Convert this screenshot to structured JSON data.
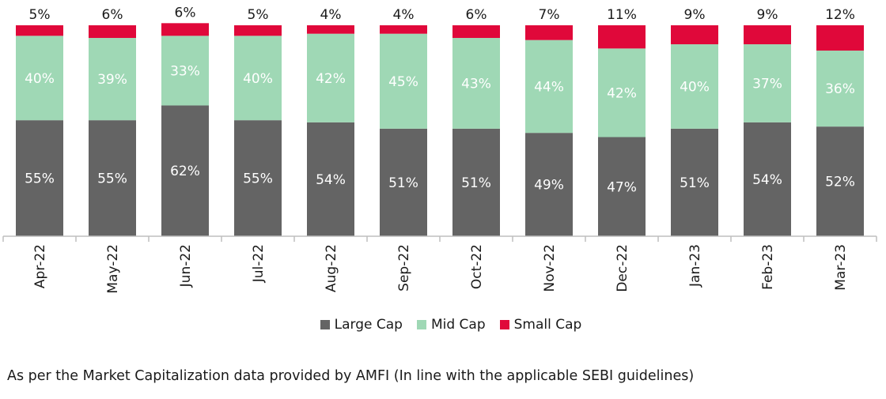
{
  "chart_data": {
    "type": "bar",
    "stacked": true,
    "percent_stacked": true,
    "categories": [
      "Apr-22",
      "May-22",
      "Jun-22",
      "Jul-22",
      "Aug-22",
      "Sep-22",
      "Oct-22",
      "Nov-22",
      "Dec-22",
      "Jan-23",
      "Feb-23",
      "Mar-23"
    ],
    "series": [
      {
        "name": "Large Cap",
        "color": "#646464",
        "values": [
          55,
          55,
          62,
          55,
          54,
          51,
          51,
          49,
          47,
          51,
          54,
          52
        ]
      },
      {
        "name": "Mid Cap",
        "color": "#9fd8b5",
        "values": [
          40,
          39,
          33,
          40,
          42,
          45,
          43,
          44,
          42,
          40,
          37,
          36
        ]
      },
      {
        "name": "Small Cap",
        "color": "#e0083a",
        "values": [
          5,
          6,
          6,
          5,
          4,
          4,
          6,
          7,
          11,
          9,
          9,
          12
        ]
      }
    ],
    "value_suffix": "%",
    "ylim": [
      0,
      100
    ],
    "grid": false,
    "legend_position": "bottom"
  },
  "footnote": "As per the Market Capitalization data provided by AMFI (In line with the applicable SEBI guidelines)"
}
